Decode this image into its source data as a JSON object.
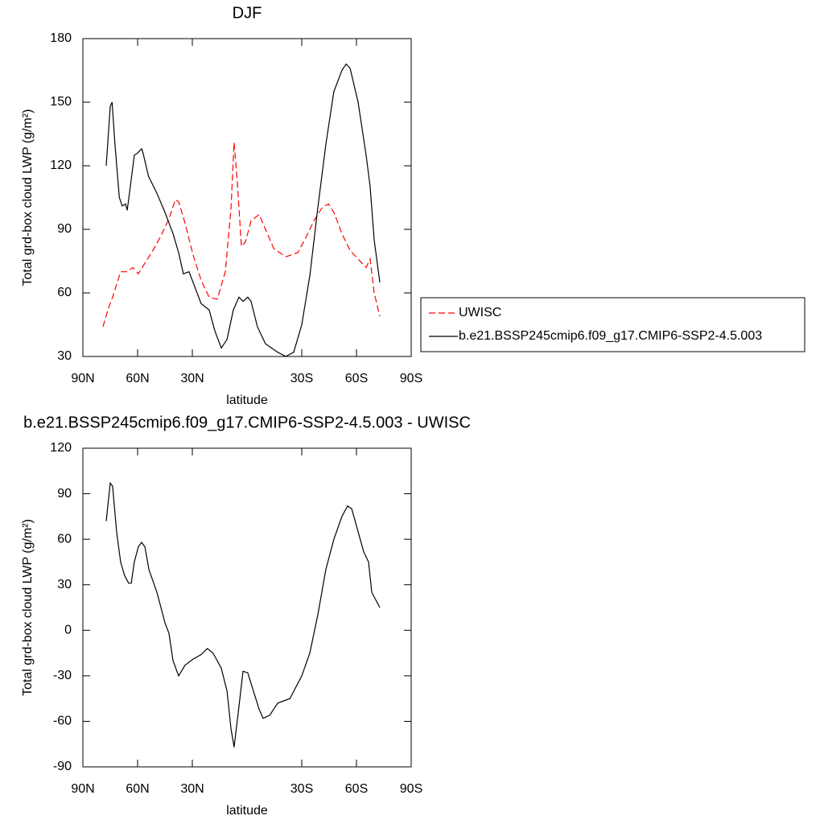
{
  "chart_data": [
    {
      "type": "line",
      "title": "DJF",
      "xlabel": "latitude",
      "ylabel": "Total grd-box cloud LWP (g/m²)",
      "xlim": [
        90,
        -90
      ],
      "xticks": [
        {
          "value": 90,
          "label": "90N"
        },
        {
          "value": 60,
          "label": "60N"
        },
        {
          "value": 30,
          "label": "30N"
        },
        {
          "value": -30,
          "label": "30S"
        },
        {
          "value": -60,
          "label": "60S"
        },
        {
          "value": -90,
          "label": "90S"
        }
      ],
      "ylim": [
        30,
        180
      ],
      "yticks": [
        30,
        60,
        90,
        120,
        150,
        180
      ],
      "legend": "right",
      "series": [
        {
          "name": "UWISC",
          "color": "#ff0000",
          "linestyle": "dashed",
          "x": [
            79,
            75.9,
            73.7,
            69.3,
            65.7,
            62.6,
            59.6,
            56,
            51.6,
            47.2,
            42.8,
            39.3,
            37.5,
            34,
            29.6,
            25.2,
            20.8,
            16.3,
            11.9,
            8.8,
            7.1,
            5.3,
            3.1,
            0.9,
            -2.2,
            -6.6,
            -10.1,
            -14.6,
            -21.2,
            -27.8,
            -32.2,
            -36.6,
            -41,
            -44.6,
            -47.6,
            -52,
            -56.5,
            -60.9,
            -65.3,
            -67.5,
            -69.7,
            -72.8
          ],
          "values": [
            44,
            53,
            58,
            70,
            70,
            72,
            69,
            74,
            80,
            87,
            95,
            104,
            103,
            93,
            78,
            66,
            58,
            57,
            70,
            100,
            131,
            112,
            82,
            84,
            94,
            97,
            90,
            81,
            77,
            79,
            86,
            94,
            100,
            102,
            98,
            88,
            80,
            76,
            72,
            76,
            60,
            49
          ]
        },
        {
          "name": "b.e21.BSSP245cmip6.f09_g17.CMIP6-SSP2-4.5.003",
          "color": "#000000",
          "linestyle": "solid",
          "x": [
            77.2,
            75,
            74,
            72.4,
            70,
            68.4,
            66.6,
            65.7,
            64,
            61.8,
            60,
            57.8,
            57,
            54,
            49.4,
            45,
            40.6,
            37.5,
            34.9,
            31.8,
            29.6,
            25.2,
            20.8,
            17.6,
            14.1,
            11,
            7.5,
            4.4,
            2.2,
            -0.4,
            -2.2,
            -5.7,
            -10.1,
            -16.8,
            -21.2,
            -25.6,
            -30,
            -34.4,
            -38.8,
            -43.2,
            -47.6,
            -52,
            -54.3,
            -56.5,
            -60.9,
            -65.3,
            -67.5,
            -69.7,
            -72.8
          ],
          "values": [
            120,
            148,
            150,
            130,
            105,
            101,
            102,
            99,
            110,
            125,
            126,
            128,
            126,
            115,
            107,
            98,
            88,
            79,
            69,
            70,
            65,
            55,
            52,
            42,
            34,
            38,
            52,
            58,
            56,
            58,
            56,
            44,
            36,
            32,
            30,
            32,
            45,
            68,
            100,
            130,
            155,
            165,
            168,
            166,
            150,
            125,
            110,
            85,
            65
          ]
        }
      ]
    },
    {
      "type": "line",
      "title": "b.e21.BSSP245cmip6.f09_g17.CMIP6-SSP2-4.5.003 - UWISC",
      "xlabel": "latitude",
      "ylabel": "Total grd-box cloud LWP (g/m²)",
      "xlim": [
        90,
        -90
      ],
      "xticks": [
        {
          "value": 90,
          "label": "90N"
        },
        {
          "value": 60,
          "label": "60N"
        },
        {
          "value": 30,
          "label": "30N"
        },
        {
          "value": -30,
          "label": "30S"
        },
        {
          "value": -60,
          "label": "60S"
        },
        {
          "value": -90,
          "label": "90S"
        }
      ],
      "ylim": [
        -90,
        120
      ],
      "yticks": [
        -90,
        -60,
        -30,
        0,
        30,
        60,
        90,
        120
      ],
      "series": [
        {
          "color": "#000000",
          "linestyle": "solid",
          "x": [
            77.2,
            75,
            73.7,
            71.5,
            69.3,
            67.1,
            64.9,
            63.5,
            61.8,
            59.6,
            57.8,
            56,
            53.8,
            49.4,
            45,
            42.8,
            40.6,
            37.5,
            34,
            29.6,
            25.2,
            21.8,
            18.6,
            14.1,
            11,
            8.8,
            7.1,
            4.9,
            2.2,
            -0.4,
            -3.5,
            -6.6,
            -8.8,
            -12.4,
            -16.8,
            -23.5,
            -30,
            -34.4,
            -38.8,
            -43.2,
            -47.6,
            -52,
            -55.1,
            -57.4,
            -60.9,
            -63.9,
            -66.6,
            -68.4,
            -70.6,
            -72.8
          ],
          "values": [
            72,
            97,
            95,
            65,
            45,
            36,
            31,
            31,
            45,
            55,
            58,
            55,
            40,
            25,
            5,
            -2,
            -20,
            -30,
            -23,
            -19,
            -16,
            -12,
            -15,
            -25,
            -40,
            -65,
            -77,
            -55,
            -27,
            -28,
            -40,
            -52,
            -58,
            -56,
            -48,
            -45,
            -30,
            -15,
            10,
            40,
            60,
            75,
            82,
            80,
            65,
            52,
            45,
            25,
            20,
            15
          ]
        }
      ]
    }
  ]
}
